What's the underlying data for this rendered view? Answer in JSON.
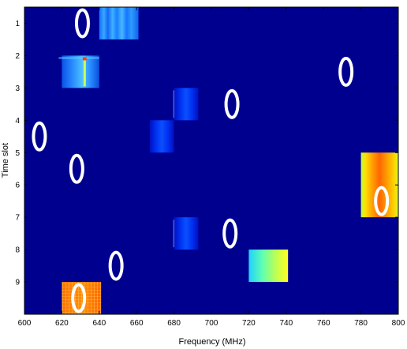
{
  "colors": {
    "background": "#00008f",
    "marker": "#ffffff"
  },
  "chart_data": {
    "type": "heatmap",
    "title": "",
    "xlabel": "Frequency (MHz)",
    "ylabel": "Time slot",
    "xlim": [
      600,
      800
    ],
    "ylim": [
      0.5,
      10
    ],
    "y_reversed": true,
    "grid": false,
    "legend": "none",
    "xticks": [
      600,
      620,
      640,
      660,
      680,
      700,
      720,
      740,
      760,
      780,
      800
    ],
    "yticks": [
      1,
      2,
      3,
      4,
      5,
      6,
      7,
      8,
      9
    ],
    "blocks": [
      {
        "name": "block-1",
        "x0": 640,
        "x1": 661,
        "y0": 0.5,
        "y1": 1.5,
        "level": 0.4,
        "texture": "stripes"
      },
      {
        "name": "block-2",
        "x0": 620,
        "x1": 640,
        "y0": 2.0,
        "y1": 3.0,
        "level": 0.38,
        "texture": "sparkle"
      },
      {
        "name": "block-3",
        "x0": 680,
        "x1": 693,
        "y0": 3.0,
        "y1": 4.0,
        "level": 0.2,
        "texture": "fade"
      },
      {
        "name": "block-4",
        "x0": 667,
        "x1": 680,
        "y0": 4.0,
        "y1": 5.0,
        "level": 0.2,
        "texture": "fade"
      },
      {
        "name": "block-5",
        "x0": 780,
        "x1": 800,
        "y0": 5.0,
        "y1": 7.0,
        "level": 0.78,
        "texture": "hot"
      },
      {
        "name": "block-6",
        "x0": 680,
        "x1": 693,
        "y0": 7.0,
        "y1": 8.0,
        "level": 0.2,
        "texture": "fade"
      },
      {
        "name": "block-7",
        "x0": 720,
        "x1": 741,
        "y0": 8.0,
        "y1": 9.0,
        "level": 0.5,
        "texture": "gradient"
      },
      {
        "name": "block-8",
        "x0": 620,
        "x1": 641,
        "y0": 9.0,
        "y1": 10.0,
        "level": 0.82,
        "texture": "grid"
      }
    ],
    "markers": [
      {
        "x": 631,
        "y": 1.0
      },
      {
        "x": 772,
        "y": 2.5
      },
      {
        "x": 711,
        "y": 3.5
      },
      {
        "x": 608,
        "y": 4.5
      },
      {
        "x": 628,
        "y": 5.5
      },
      {
        "x": 791,
        "y": 6.5
      },
      {
        "x": 710,
        "y": 7.5
      },
      {
        "x": 649,
        "y": 8.5
      },
      {
        "x": 629,
        "y": 9.5
      }
    ]
  }
}
